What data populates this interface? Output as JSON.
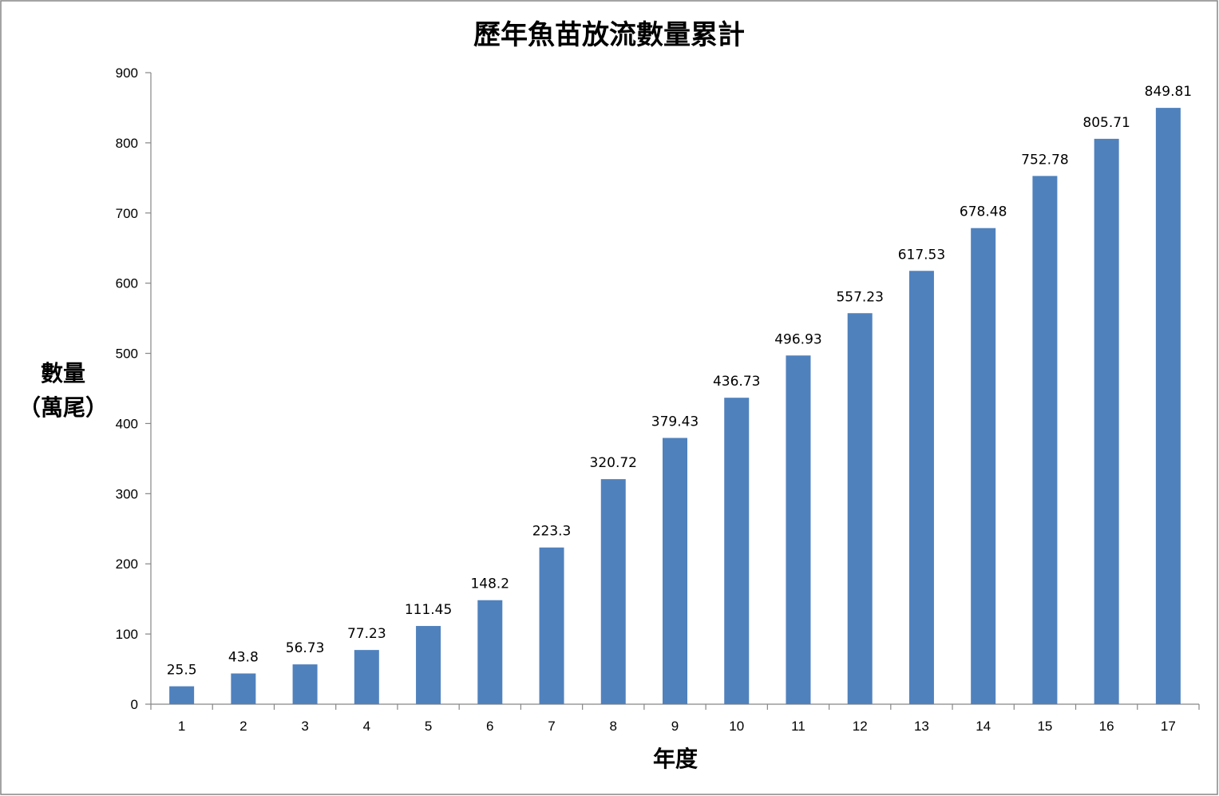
{
  "chart_data": {
    "type": "bar",
    "title": "歷年魚苗放流數量累計",
    "xlabel": "年度",
    "ylabel": [
      "數量",
      "（萬尾）"
    ],
    "categories": [
      "1",
      "2",
      "3",
      "4",
      "5",
      "6",
      "7",
      "8",
      "9",
      "10",
      "11",
      "12",
      "13",
      "14",
      "15",
      "16",
      "17"
    ],
    "values": [
      25.5,
      43.8,
      56.73,
      77.23,
      111.45,
      148.2,
      223.3,
      320.72,
      379.43,
      436.73,
      496.93,
      557.23,
      617.53,
      678.48,
      752.78,
      805.71,
      849.81
    ],
    "data_labels": [
      "25.5",
      "43.8",
      "56.73",
      "77.23",
      "111.45",
      "148.2",
      "223.3",
      "320.72",
      "379.43",
      "436.73",
      "496.93",
      "557.23",
      "617.53",
      "678.48",
      "752.78",
      "805.71",
      "849.81"
    ],
    "ylim": [
      0,
      900
    ],
    "yticks": [
      "0",
      "100",
      "200",
      "300",
      "400",
      "500",
      "600",
      "700",
      "800",
      "900"
    ],
    "bar_color": "#4f81bd",
    "grid": false,
    "legend": "none"
  }
}
